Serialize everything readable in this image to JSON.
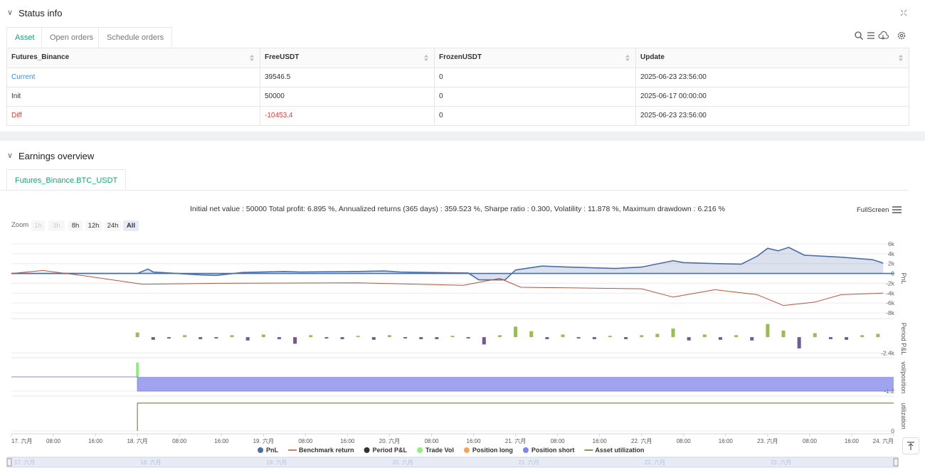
{
  "status_info": {
    "title": "Status info",
    "tabs": [
      "Asset",
      "Open orders",
      "Schedule orders"
    ],
    "table": {
      "columns": [
        "Futures_Binance",
        "FreeUSDT",
        "FrozenUSDT",
        "Update"
      ],
      "rows": [
        [
          "Current",
          "39546.5",
          "0",
          "2025-06-23 23:56:00"
        ],
        [
          "Init",
          "50000",
          "0",
          "2025-06-17 00:00:00"
        ],
        [
          "Diff",
          "-10453.4",
          "0",
          "2025-06-23 23:56:00"
        ]
      ]
    }
  },
  "earnings_overview": {
    "title": "Earnings overview",
    "tabs": [
      "Futures_Binance.BTC_USDT"
    ],
    "summary": "Initial net value : 50000 Total profit: 6.895 %, Annualized returns (365 days) : 359.523 %, Sharpe ratio : 0.300, Volatility : 11.878 %, Maximum drawdown : 6.216 %",
    "fullscreen": "FullScreen",
    "zoom_label": "Zoom",
    "zoom_buttons": [
      "1h",
      "3h",
      "8h",
      "12h",
      "24h",
      "All"
    ]
  },
  "chart_data": {
    "type": "line",
    "xlim": [
      0,
      168
    ],
    "xticks": [
      {
        "value": 0,
        "label": "17. 六月"
      },
      {
        "value": 8,
        "label": "08:00"
      },
      {
        "value": 16,
        "label": "16:00"
      },
      {
        "value": 24,
        "label": "18. 六月"
      },
      {
        "value": 32,
        "label": "08:00"
      },
      {
        "value": 40,
        "label": "16:00"
      },
      {
        "value": 48,
        "label": "19. 六月"
      },
      {
        "value": 56,
        "label": "08:00"
      },
      {
        "value": 64,
        "label": "16:00"
      },
      {
        "value": 72,
        "label": "20. 六月"
      },
      {
        "value": 80,
        "label": "08:00"
      },
      {
        "value": 88,
        "label": "16:00"
      },
      {
        "value": 96,
        "label": "21. 六月"
      },
      {
        "value": 104,
        "label": "08:00"
      },
      {
        "value": 112,
        "label": "16:00"
      },
      {
        "value": 120,
        "label": "22. 六月"
      },
      {
        "value": 128,
        "label": "08:00"
      },
      {
        "value": 136,
        "label": "16:00"
      },
      {
        "value": 144,
        "label": "23. 六月"
      },
      {
        "value": 152,
        "label": "08:00"
      },
      {
        "value": 160,
        "label": "16:00"
      },
      {
        "value": 168,
        "label": "24. 六月"
      }
    ],
    "ylabel": "PnL",
    "ylim": [
      -8000,
      6000
    ],
    "yticks": [
      {
        "value": 6000,
        "label": "6k"
      },
      {
        "value": 4000,
        "label": "4k"
      },
      {
        "value": 2000,
        "label": "2k"
      },
      0,
      {
        "value": -2000,
        "label": "-2k"
      },
      {
        "value": -4000,
        "label": "-4k"
      },
      {
        "value": -6000,
        "label": "-6k"
      },
      {
        "value": -8000,
        "label": "-8k"
      }
    ],
    "y2label": "Period P&L",
    "y2lim": [
      -3000,
      2600
    ],
    "y2ticks": [
      {
        "value": -2400,
        "label": "-2.4k"
      }
    ],
    "y3label": "vol/position",
    "y3lim": [
      -1.5,
      1.5
    ],
    "y3ticks": [
      -1.2
    ],
    "y4label": "utilization",
    "y4lim": [
      0,
      1
    ],
    "y4ticks": [
      0
    ],
    "grid": true,
    "series": [
      {
        "name": "PnL",
        "style": "area",
        "axis": "y",
        "color": "#4a6fa5",
        "x": [
          0,
          24,
          26,
          27,
          36,
          39,
          44,
          52,
          55,
          66,
          71,
          74,
          79,
          87,
          89,
          94,
          96,
          101,
          106,
          115,
          120,
          126,
          128,
          134,
          139,
          142,
          144,
          146,
          148,
          151,
          158,
          164,
          166
        ],
        "values": [
          0,
          0,
          900,
          300,
          -300,
          -400,
          200,
          400,
          300,
          400,
          500,
          300,
          200,
          100,
          -1300,
          -1300,
          700,
          1500,
          1300,
          1000,
          1300,
          2600,
          2200,
          2000,
          1900,
          3500,
          5100,
          4600,
          5300,
          3700,
          3300,
          2800,
          2100
        ]
      },
      {
        "name": "Benchmark return",
        "style": "line",
        "axis": "y",
        "color": "#b5533c",
        "x": [
          0,
          6,
          14,
          25,
          39,
          66,
          86,
          93,
          97,
          106,
          120,
          126,
          134,
          142,
          147,
          153,
          158,
          166
        ],
        "values": [
          0,
          600,
          -500,
          -2200,
          -2000,
          -1900,
          -2400,
          -1000,
          -2800,
          -2900,
          -3100,
          -4800,
          -3300,
          -4300,
          -6500,
          -5800,
          -4300,
          -4000
        ]
      },
      {
        "name": "Period P&L",
        "style": "bar",
        "axis": "y2",
        "color": "#333333",
        "positive_color": "#9bbb59",
        "negative_color": "#725990",
        "x": [
          24,
          27,
          30,
          33,
          36,
          39,
          42,
          45,
          48,
          51,
          54,
          57,
          60,
          63,
          66,
          69,
          72,
          75,
          78,
          81,
          84,
          87,
          90,
          93,
          96,
          99,
          102,
          105,
          108,
          111,
          114,
          117,
          120,
          123,
          126,
          129,
          132,
          135,
          138,
          141,
          144,
          147,
          150,
          153,
          156,
          159,
          162,
          165
        ],
        "values": [
          700,
          -400,
          -200,
          300,
          -300,
          -200,
          300,
          -500,
          400,
          -300,
          -1000,
          300,
          -200,
          -300,
          200,
          -400,
          300,
          -200,
          -300,
          -300,
          200,
          -200,
          -1100,
          300,
          1600,
          900,
          -300,
          400,
          -200,
          -300,
          200,
          -300,
          300,
          500,
          1300,
          -500,
          400,
          -400,
          300,
          -500,
          2000,
          1000,
          -1700,
          600,
          -300,
          -400,
          300,
          500
        ]
      },
      {
        "name": "Trade Vol",
        "style": "bar",
        "axis": "y3",
        "color": "#90ee7e",
        "x": [
          24
        ],
        "values": [
          1.2
        ]
      },
      {
        "name": "Position long",
        "style": "area",
        "axis": "y3",
        "color": "#f7a35c",
        "x": [],
        "values": []
      },
      {
        "name": "Position short",
        "style": "area",
        "axis": "y3",
        "color": "#8085e9",
        "x": [
          0,
          24,
          24,
          168
        ],
        "values": [
          0,
          0,
          -1.2,
          -1.2
        ]
      },
      {
        "name": "Asset utilization",
        "style": "line",
        "axis": "y4",
        "color": "#6b6a2a",
        "x": [
          24,
          24,
          168
        ],
        "values": [
          0,
          0.85,
          0.85
        ]
      }
    ]
  }
}
